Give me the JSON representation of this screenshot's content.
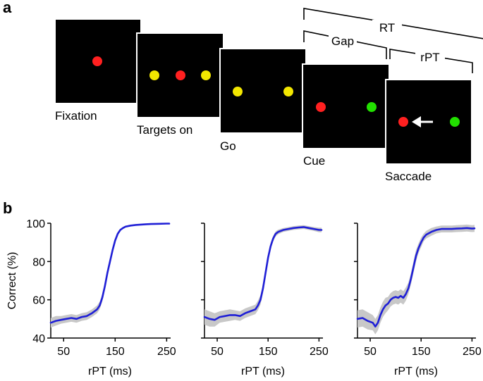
{
  "panel_a": {
    "letter": "a",
    "frames": [
      {
        "label": "Fixation",
        "dots": [
          "red"
        ]
      },
      {
        "label": "Targets on",
        "dots": [
          "yellow",
          "red",
          "yellow"
        ]
      },
      {
        "label": "Go",
        "dots": [
          "yellow",
          "yellow"
        ]
      },
      {
        "label": "Cue",
        "dots": [
          "red",
          "green"
        ]
      },
      {
        "label": "Saccade",
        "dots": [
          "red",
          "green"
        ],
        "arrow": true
      }
    ],
    "brackets": {
      "rt": "RT",
      "gap": "Gap",
      "rpt": "rPT"
    }
  },
  "colors": {
    "frame": "#000000",
    "red": "#ff2020",
    "yellow": "#f2e600",
    "green": "#22e000",
    "line": "#1f1fd6",
    "band": "#c8c8c8"
  },
  "chart_data": [
    {
      "type": "line",
      "title": "",
      "panel_letter": "b",
      "xlabel": "rPT (ms)",
      "ylabel": "Correct (%)",
      "xlim": [
        25,
        255
      ],
      "ylim": [
        40,
        100
      ],
      "xticks": [
        50,
        150,
        250
      ],
      "yticks": [
        40,
        60,
        80,
        100
      ],
      "grid": false,
      "series": [
        {
          "name": "Correct",
          "x": [
            25,
            35,
            45,
            55,
            65,
            75,
            85,
            95,
            105,
            115,
            120,
            125,
            130,
            135,
            140,
            145,
            150,
            155,
            160,
            165,
            170,
            180,
            190,
            200,
            210,
            220,
            235,
            250,
            255
          ],
          "y": [
            48,
            49,
            49.5,
            50,
            50.5,
            50,
            51,
            51.5,
            53,
            55,
            57,
            61,
            67,
            74,
            80,
            86,
            91,
            94.5,
            96.5,
            97.5,
            98.2,
            98.8,
            99.1,
            99.3,
            99.5,
            99.6,
            99.7,
            99.8,
            99.8
          ],
          "band": [
            2.5,
            2.5,
            2,
            2,
            2,
            2,
            2,
            2,
            2,
            2,
            2,
            2,
            1.8,
            1.5,
            1.2,
            1.2,
            1,
            0.8,
            0.6,
            0.5,
            0.5,
            0.4,
            0.3,
            0.3,
            0.3,
            0.3,
            0.3,
            0.3,
            0.3
          ]
        }
      ]
    },
    {
      "type": "line",
      "title": "",
      "xlabel": "rPT (ms)",
      "ylabel": "",
      "xlim": [
        25,
        255
      ],
      "ylim": [
        40,
        100
      ],
      "xticks": [
        50,
        150,
        250
      ],
      "yticks": [
        40,
        60,
        80,
        100
      ],
      "grid": false,
      "series": [
        {
          "name": "Correct",
          "x": [
            25,
            35,
            45,
            55,
            65,
            75,
            85,
            95,
            105,
            115,
            125,
            130,
            135,
            140,
            145,
            150,
            155,
            160,
            165,
            170,
            180,
            190,
            200,
            210,
            220,
            230,
            240,
            250,
            255
          ],
          "y": [
            51,
            50,
            49.5,
            51,
            51.5,
            52,
            52,
            51.5,
            53,
            54,
            55,
            57,
            60,
            66,
            74,
            82,
            88,
            92,
            94.5,
            95.5,
            96.5,
            97,
            97.5,
            97.8,
            98,
            97.5,
            97,
            96.5,
            96.5
          ],
          "band": [
            4,
            4,
            3.5,
            3,
            3,
            3,
            2.5,
            2.5,
            2.5,
            2.5,
            2.5,
            2.5,
            2.5,
            2.5,
            2.2,
            2,
            1.8,
            1.5,
            1.3,
            1.2,
            1,
            1,
            1,
            1,
            1,
            1,
            1,
            1.2,
            1.2
          ]
        }
      ]
    },
    {
      "type": "line",
      "title": "",
      "xlabel": "rPT (ms)",
      "ylabel": "",
      "xlim": [
        25,
        255
      ],
      "ylim": [
        40,
        100
      ],
      "xticks": [
        50,
        150,
        250
      ],
      "yticks": [
        40,
        60,
        80,
        100
      ],
      "grid": false,
      "series": [
        {
          "name": "Correct",
          "x": [
            25,
            35,
            45,
            55,
            60,
            65,
            70,
            75,
            80,
            85,
            90,
            95,
            100,
            105,
            110,
            115,
            120,
            125,
            130,
            135,
            140,
            145,
            150,
            155,
            160,
            170,
            180,
            190,
            200,
            210,
            220,
            230,
            240,
            250,
            255
          ],
          "y": [
            50,
            50.5,
            49,
            48,
            46,
            48,
            52,
            55,
            57,
            58,
            60,
            61,
            61.5,
            61,
            62,
            61,
            63,
            66,
            71,
            77,
            83,
            87,
            90,
            92.5,
            94,
            95.5,
            96.5,
            97,
            97,
            97,
            97.2,
            97.3,
            97.5,
            97.2,
            97.3
          ],
          "band": [
            4.5,
            4.5,
            4.5,
            4,
            4,
            4,
            4,
            4,
            4,
            3.5,
            3.5,
            3.5,
            3.5,
            3.5,
            3.5,
            3.5,
            3.5,
            3,
            3,
            3,
            3,
            2.5,
            2.5,
            2,
            2,
            2,
            1.8,
            1.8,
            1.8,
            1.8,
            1.8,
            1.8,
            1.8,
            1.8,
            1.8
          ]
        }
      ]
    }
  ]
}
